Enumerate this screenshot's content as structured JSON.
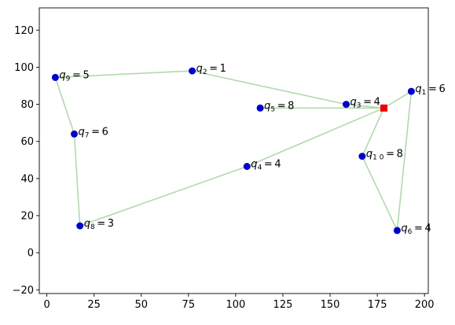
{
  "chart_data": {
    "type": "scatter",
    "title": "",
    "xlabel": "",
    "ylabel": "",
    "xlim": [
      -4,
      202
    ],
    "ylim": [
      -22,
      132
    ],
    "x_ticks": [
      0,
      25,
      50,
      75,
      100,
      125,
      150,
      175,
      200
    ],
    "y_ticks": [
      -20,
      0,
      20,
      40,
      60,
      80,
      100,
      120
    ],
    "grid": false,
    "depot": {
      "x": 178.5,
      "y": 78
    },
    "points": [
      {
        "label": "q_9 = 5",
        "x": 4.5,
        "y": 94.5
      },
      {
        "label": "q_2 = 1",
        "x": 77,
        "y": 98
      },
      {
        "label": "q_5 = 8",
        "x": 113,
        "y": 78
      },
      {
        "label": "q_3 = 4",
        "x": 158.5,
        "y": 80
      },
      {
        "label": "q_1 = 6",
        "x": 193,
        "y": 87
      },
      {
        "label": "q_7 = 6",
        "x": 14.5,
        "y": 64
      },
      {
        "label": "q_1 0 = 8",
        "x": 167,
        "y": 52
      },
      {
        "label": "q_4 = 4",
        "x": 106,
        "y": 46.5
      },
      {
        "label": "q_8 = 3",
        "x": 17.5,
        "y": 14.5
      },
      {
        "label": "q_6 = 4",
        "x": 185.5,
        "y": 12
      }
    ],
    "routes": [
      [
        [
          178.5,
          78
        ],
        [
          158.5,
          80
        ],
        [
          77,
          98
        ],
        [
          4.5,
          94.5
        ],
        [
          14.5,
          64
        ],
        [
          17.5,
          14.5
        ],
        [
          106,
          46.5
        ],
        [
          178.5,
          78
        ]
      ],
      [
        [
          178.5,
          78
        ],
        [
          113,
          78
        ],
        [
          178.5,
          78
        ]
      ],
      [
        [
          178.5,
          78
        ],
        [
          167,
          52
        ],
        [
          185.5,
          12
        ],
        [
          193,
          87
        ],
        [
          178.5,
          78
        ]
      ]
    ],
    "colors": {
      "point": "#0000cc",
      "depot": "#ee0000",
      "route": "#b2d9ae",
      "axes": "#000000"
    }
  }
}
